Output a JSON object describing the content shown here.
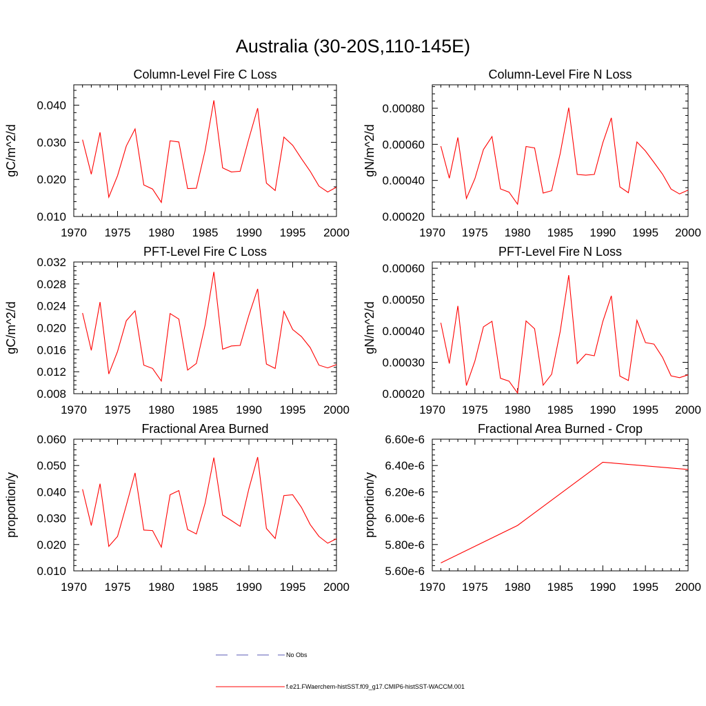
{
  "title": "Australia (30-20S,110-145E)",
  "legend": [
    {
      "label": "No Obs",
      "color": "#5a5ab4",
      "dash": true
    },
    {
      "label": "f.e21.FWaerchem-histSST.f09_g17.CMIP6-histSST-WACCM.001",
      "color": "#ff0000",
      "dash": false
    }
  ],
  "chart_data": [
    {
      "type": "line",
      "title": "Column-Level Fire C Loss",
      "ylabel": "gC/m^2/d",
      "xlim": [
        1970,
        2000
      ],
      "ylim": [
        0.01,
        0.0455
      ],
      "xticks": [
        1970,
        1975,
        1980,
        1985,
        1990,
        1995,
        2000
      ],
      "yticks": [
        0.01,
        0.02,
        0.03,
        0.04
      ],
      "ytick_labels": [
        "0.010",
        "0.020",
        "0.030",
        "0.040"
      ],
      "series": [
        {
          "color": "#ff0000",
          "x": [
            1971,
            1972,
            1973,
            1974,
            1975,
            1976,
            1977,
            1978,
            1979,
            1980,
            1981,
            1982,
            1983,
            1984,
            1985,
            1986,
            1987,
            1988,
            1989,
            1990,
            1991,
            1992,
            1993,
            1994,
            1995,
            1996,
            1997,
            1998,
            1999,
            2000
          ],
          "values": [
            0.0307,
            0.0214,
            0.0327,
            0.0152,
            0.021,
            0.029,
            0.0336,
            0.0185,
            0.0174,
            0.0138,
            0.0304,
            0.0301,
            0.0175,
            0.0176,
            0.0278,
            0.0413,
            0.0231,
            0.022,
            0.0222,
            0.031,
            0.0392,
            0.019,
            0.017,
            0.0314,
            0.0292,
            0.0256,
            0.0222,
            0.0182,
            0.0166,
            0.0179
          ]
        }
      ]
    },
    {
      "type": "line",
      "title": "Column-Level Fire N Loss",
      "ylabel": "gN/m^2/d",
      "xlim": [
        1970,
        2000
      ],
      "ylim": [
        0.0002,
        0.00093
      ],
      "xticks": [
        1970,
        1975,
        1980,
        1985,
        1990,
        1995,
        2000
      ],
      "yticks": [
        0.0002,
        0.0004,
        0.0006,
        0.0008
      ],
      "ytick_labels": [
        "0.00020",
        "0.00040",
        "0.00060",
        "0.00080"
      ],
      "series": [
        {
          "color": "#ff0000",
          "x": [
            1971,
            1972,
            1973,
            1974,
            1975,
            1976,
            1977,
            1978,
            1979,
            1980,
            1981,
            1982,
            1983,
            1984,
            1985,
            1986,
            1987,
            1988,
            1989,
            1990,
            1991,
            1992,
            1993,
            1994,
            1995,
            1996,
            1997,
            1998,
            1999,
            2000
          ],
          "values": [
            0.00059,
            0.000412,
            0.000638,
            0.0003,
            0.00041,
            0.000571,
            0.000643,
            0.000353,
            0.000335,
            0.000268,
            0.000588,
            0.00058,
            0.00033,
            0.000343,
            0.000548,
            0.000803,
            0.000433,
            0.000429,
            0.000433,
            0.000608,
            0.000747,
            0.000364,
            0.000332,
            0.000613,
            0.000563,
            0.0005,
            0.000435,
            0.000352,
            0.000325,
            0.000346
          ]
        }
      ]
    },
    {
      "type": "line",
      "title": "PFT-Level Fire C Loss",
      "ylabel": "gC/m^2/d",
      "xlim": [
        1970,
        2000
      ],
      "ylim": [
        0.008,
        0.032
      ],
      "xticks": [
        1970,
        1975,
        1980,
        1985,
        1990,
        1995,
        2000
      ],
      "yticks": [
        0.008,
        0.012,
        0.016,
        0.02,
        0.024,
        0.028,
        0.032
      ],
      "ytick_labels": [
        "0.008",
        "0.012",
        "0.016",
        "0.020",
        "0.024",
        "0.028",
        "0.032"
      ],
      "series": [
        {
          "color": "#ff0000",
          "x": [
            1971,
            1972,
            1973,
            1974,
            1975,
            1976,
            1977,
            1978,
            1979,
            1980,
            1981,
            1982,
            1983,
            1984,
            1985,
            1986,
            1987,
            1988,
            1989,
            1990,
            1991,
            1992,
            1993,
            1994,
            1995,
            1996,
            1997,
            1998,
            1999,
            2000
          ],
          "values": [
            0.0227,
            0.0159,
            0.0247,
            0.0116,
            0.0157,
            0.0213,
            0.0231,
            0.0132,
            0.0126,
            0.0103,
            0.0226,
            0.0216,
            0.0123,
            0.0135,
            0.0205,
            0.0302,
            0.0161,
            0.0167,
            0.0168,
            0.0223,
            0.0271,
            0.0134,
            0.0126,
            0.023,
            0.0197,
            0.0184,
            0.0164,
            0.0132,
            0.0127,
            0.0133
          ]
        }
      ]
    },
    {
      "type": "line",
      "title": "PFT-Level Fire N Loss",
      "ylabel": "gN/m^2/d",
      "xlim": [
        1970,
        2000
      ],
      "ylim": [
        0.0002,
        0.00062
      ],
      "xticks": [
        1970,
        1975,
        1980,
        1985,
        1990,
        1995,
        2000
      ],
      "yticks": [
        0.0002,
        0.0003,
        0.0004,
        0.0005,
        0.0006
      ],
      "ytick_labels": [
        "0.00020",
        "0.00030",
        "0.00040",
        "0.00050",
        "0.00060"
      ],
      "series": [
        {
          "color": "#ff0000",
          "x": [
            1971,
            1972,
            1973,
            1974,
            1975,
            1976,
            1977,
            1978,
            1979,
            1980,
            1981,
            1982,
            1983,
            1984,
            1985,
            1986,
            1987,
            1988,
            1989,
            1990,
            1991,
            1992,
            1993,
            1994,
            1995,
            1996,
            1997,
            1998,
            1999,
            2000
          ],
          "values": [
            0.000426,
            0.000296,
            0.00048,
            0.000226,
            0.000304,
            0.000413,
            0.000431,
            0.000249,
            0.00024,
            0.000202,
            0.000432,
            0.000407,
            0.000227,
            0.000262,
            0.000398,
            0.000578,
            0.000296,
            0.000326,
            0.000321,
            0.00043,
            0.000512,
            0.000256,
            0.000242,
            0.000434,
            0.000363,
            0.000358,
            0.000316,
            0.000257,
            0.000251,
            0.00026
          ]
        }
      ]
    },
    {
      "type": "line",
      "title": "Fractional Area Burned",
      "ylabel": "proportion/y",
      "xlim": [
        1970,
        2000
      ],
      "ylim": [
        0.01,
        0.06
      ],
      "xticks": [
        1970,
        1975,
        1980,
        1985,
        1990,
        1995,
        2000
      ],
      "yticks": [
        0.01,
        0.02,
        0.03,
        0.04,
        0.05,
        0.06
      ],
      "ytick_labels": [
        "0.010",
        "0.020",
        "0.030",
        "0.040",
        "0.050",
        "0.060"
      ],
      "series": [
        {
          "color": "#ff0000",
          "x": [
            1971,
            1972,
            1973,
            1974,
            1975,
            1976,
            1977,
            1978,
            1979,
            1980,
            1981,
            1982,
            1983,
            1984,
            1985,
            1986,
            1987,
            1988,
            1989,
            1990,
            1991,
            1992,
            1993,
            1994,
            1995,
            1996,
            1997,
            1998,
            1999,
            2000
          ],
          "values": [
            0.041,
            0.0272,
            0.0431,
            0.0193,
            0.0231,
            0.0349,
            0.0472,
            0.0255,
            0.0253,
            0.019,
            0.0389,
            0.0405,
            0.0257,
            0.024,
            0.0357,
            0.053,
            0.0312,
            0.0291,
            0.0269,
            0.0412,
            0.0532,
            0.0261,
            0.0223,
            0.0386,
            0.0389,
            0.0341,
            0.0276,
            0.0231,
            0.0205,
            0.0222
          ]
        }
      ]
    },
    {
      "type": "line",
      "title": "Fractional Area Burned - Crop",
      "ylabel": "proportion/y",
      "xlim": [
        1970,
        2000
      ],
      "ylim": [
        5.6e-06,
        6.6e-06
      ],
      "xticks": [
        1970,
        1975,
        1980,
        1985,
        1990,
        1995,
        2000
      ],
      "yticks": [
        5.6e-06,
        5.8e-06,
        6e-06,
        6.2e-06,
        6.4e-06,
        6.6e-06
      ],
      "ytick_labels": [
        "5.60e-6",
        "5.80e-6",
        "6.00e-6",
        "6.20e-6",
        "6.40e-6",
        "6.60e-6"
      ],
      "series": [
        {
          "color": "#ff0000",
          "x": [
            1971,
            1980,
            1990,
            2000
          ],
          "values": [
            5.66e-06,
            5.945e-06,
            6.425e-06,
            6.37e-06
          ]
        }
      ]
    }
  ]
}
